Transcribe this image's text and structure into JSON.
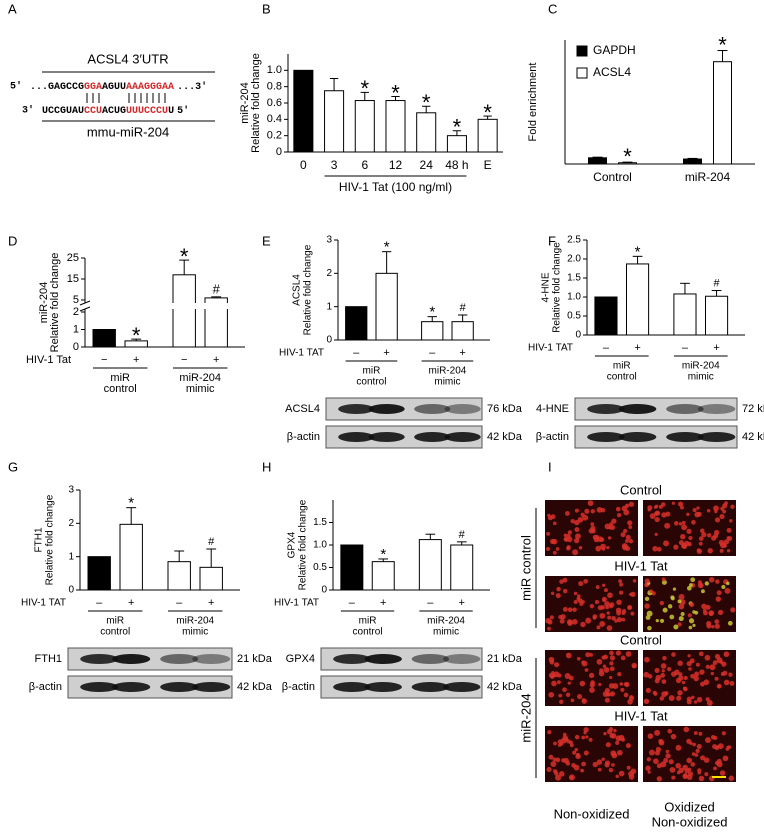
{
  "panel_labels": [
    "A",
    "B",
    "C",
    "D",
    "E",
    "F",
    "G",
    "H",
    "I"
  ],
  "sequence": {
    "title": "ACSL4 3′UTR",
    "top": {
      "left": "5′",
      "right": "...3′",
      "segments": [
        {
          "text": "...GAGCCG",
          "color": "#000000"
        },
        {
          "text": "GGA",
          "color": "#d62728"
        },
        {
          "text": "AGUU",
          "color": "#000000"
        },
        {
          "text": "AAAGGGAA",
          "color": "#d62728"
        }
      ]
    },
    "bottom": {
      "left": "3′",
      "right": "5′",
      "segments": [
        {
          "text": "UCCGUAU",
          "color": "#000000"
        },
        {
          "text": "CCU",
          "color": "#d62728"
        },
        {
          "text": "ACUG",
          "color": "#000000"
        },
        {
          "text": "UUUCCCU",
          "color": "#d62728"
        },
        {
          "text": "U",
          "color": "#000000"
        }
      ]
    },
    "mirna": "mmu-miR-204"
  },
  "chart_data": [
    {
      "type": "bar",
      "ylabel": [
        "miR-204",
        "Relative fold change"
      ],
      "categories": [
        "0",
        "3",
        "6",
        "12",
        "24",
        "48 h",
        "E"
      ],
      "values": [
        1,
        0.75,
        0.63,
        0.63,
        0.48,
        0.2,
        0.4
      ],
      "errors": [
        null,
        0.15,
        0.1,
        0.05,
        0.08,
        0.06,
        0.04
      ],
      "annotations": [
        null,
        null,
        "*",
        "*",
        "*",
        "*",
        "*"
      ],
      "colors": [
        "#000000",
        "#ffffff",
        "#ffffff",
        "#ffffff",
        "#ffffff",
        "#ffffff",
        "#ffffff"
      ],
      "xlabel": "HIV-1 Tat (100 ng/ml)",
      "ylim": [
        0,
        1.2
      ],
      "yticks": [
        0,
        0.2,
        0.4,
        0.6,
        0.8,
        {
          "value": 1,
          "label": "1.0"
        }
      ]
    },
    {
      "type": "grouped_bar",
      "ylabel": [
        "Fold enrichment"
      ],
      "categories": [
        "Control",
        "miR-204"
      ],
      "series": [
        {
          "name": "GAPDH",
          "color": "#000000",
          "values": [
            1,
            0.8
          ],
          "errors": [
            0.1,
            0.1
          ],
          "annotations": [
            null,
            null
          ]
        },
        {
          "name": "ACSL4",
          "color": "#ffffff",
          "values": [
            0.2,
            16.5
          ],
          "errors": [
            0.1,
            1.8
          ],
          "annotations": [
            "*",
            "*"
          ]
        }
      ],
      "ylim": [
        0,
        20
      ]
    },
    {
      "type": "bar",
      "ylabel": [
        "miR-204",
        "Relative fold change"
      ],
      "treatment": "HIV-1 Tat",
      "categories": [
        "−",
        "+",
        "−",
        "+"
      ],
      "group_labels": [
        [
          "miR",
          "control"
        ],
        [
          "miR-204",
          "mimic"
        ]
      ],
      "values": [
        1,
        0.35,
        17,
        6
      ],
      "errors": [
        null,
        0.1,
        7,
        0.5
      ],
      "annotations": [
        null,
        "*",
        "*",
        "#"
      ],
      "colors": [
        "#000000",
        "#ffffff",
        "#ffffff",
        "#ffffff"
      ],
      "ylim": [
        0,
        25
      ],
      "axis_break": [
        2,
        5
      ],
      "yticks": [
        0,
        1,
        2,
        5,
        15,
        25
      ]
    },
    {
      "type": "bar",
      "ylabel": [
        "ACSL4",
        "Relative fold change"
      ],
      "treatment": "HIV-1 TAT",
      "categories": [
        "–",
        "+",
        "–",
        "+"
      ],
      "group_labels": [
        [
          "miR",
          "control"
        ],
        [
          "miR-204",
          "mimic"
        ]
      ],
      "values": [
        1,
        2,
        0.55,
        0.55
      ],
      "errors": [
        null,
        0.65,
        0.15,
        0.2
      ],
      "annotations": [
        null,
        "*",
        "*",
        "#"
      ],
      "colors": [
        "#000000",
        "#ffffff",
        "#ffffff",
        "#ffffff"
      ],
      "ylim": [
        0,
        3
      ],
      "yticks": [
        0,
        1,
        2,
        3
      ],
      "blots": [
        {
          "label": "ACSL4",
          "size": "76 kDa"
        },
        {
          "label": "β-actin",
          "size": "42 kDa"
        }
      ]
    },
    {
      "type": "bar",
      "ylabel": [
        "4-HNE",
        "Relative fold change"
      ],
      "treatment": "HIV-1 TAT",
      "categories": [
        "–",
        "+",
        "–",
        "+"
      ],
      "group_labels": [
        [
          "miR",
          "control"
        ],
        [
          "miR-204",
          "mimic"
        ]
      ],
      "values": [
        1,
        1.87,
        1.08,
        1.02
      ],
      "errors": [
        null,
        0.2,
        0.28,
        0.15
      ],
      "annotations": [
        null,
        "*",
        null,
        "#"
      ],
      "colors": [
        "#000000",
        "#ffffff",
        "#ffffff",
        "#ffffff"
      ],
      "ylim": [
        0,
        2.5
      ],
      "yticks": [
        0,
        0.5,
        {
          "value": 1,
          "label": "1.0"
        },
        1.5,
        {
          "value": 2,
          "label": "2.0"
        },
        2.5
      ],
      "blots": [
        {
          "label": "4-HNE",
          "size": "72 kDa"
        },
        {
          "label": "β-actin",
          "size": "42 kDa"
        }
      ]
    },
    {
      "type": "bar",
      "ylabel": [
        "FTH1",
        "Relative fold change"
      ],
      "treatment": "HIV-1 TAT",
      "categories": [
        "–",
        "+",
        "–",
        "+"
      ],
      "group_labels": [
        [
          "miR",
          "control"
        ],
        [
          "miR-204",
          "mimic"
        ]
      ],
      "values": [
        1,
        1.97,
        0.85,
        0.68
      ],
      "errors": [
        null,
        0.5,
        0.32,
        0.55
      ],
      "annotations": [
        null,
        "*",
        null,
        "#"
      ],
      "colors": [
        "#000000",
        "#ffffff",
        "#ffffff",
        "#ffffff"
      ],
      "ylim": [
        0,
        3
      ],
      "yticks": [
        0,
        1,
        2,
        3
      ],
      "blots": [
        {
          "label": "FTH1",
          "size": "21 kDa"
        },
        {
          "label": "β-actin",
          "size": "42 kDa"
        }
      ]
    },
    {
      "type": "bar",
      "ylabel": [
        "GPX4",
        "Relative fold change"
      ],
      "treatment": "HIV-1 TAT",
      "categories": [
        "–",
        "+",
        "–",
        "+"
      ],
      "group_labels": [
        [
          "miR",
          "control"
        ],
        [
          "miR-204",
          "mimic"
        ]
      ],
      "values": [
        1,
        0.63,
        1.12,
        1
      ],
      "errors": [
        null,
        0.06,
        0.12,
        0.07
      ],
      "annotations": [
        null,
        "*",
        null,
        "#"
      ],
      "colors": [
        "#000000",
        "#ffffff",
        "#ffffff",
        "#ffffff"
      ],
      "ylim": [
        0,
        2
      ],
      "yticks": [
        0,
        0.5,
        {
          "value": 1,
          "label": "1.0"
        },
        1.5
      ],
      "blots": [
        {
          "label": "GPX4",
          "size": "21 kDa"
        },
        {
          "label": "β-actin",
          "size": "42 kDa"
        }
      ]
    }
  ],
  "imaging": {
    "row_labels": [
      "Control",
      "HIV-1 Tat",
      "Control",
      "HIV-1 Tat"
    ],
    "groups": [
      "miR control",
      "miR-204"
    ],
    "column_labels": [
      [
        "Non-oxidized"
      ],
      [
        "Oxidized",
        "Non-oxidized"
      ]
    ]
  }
}
